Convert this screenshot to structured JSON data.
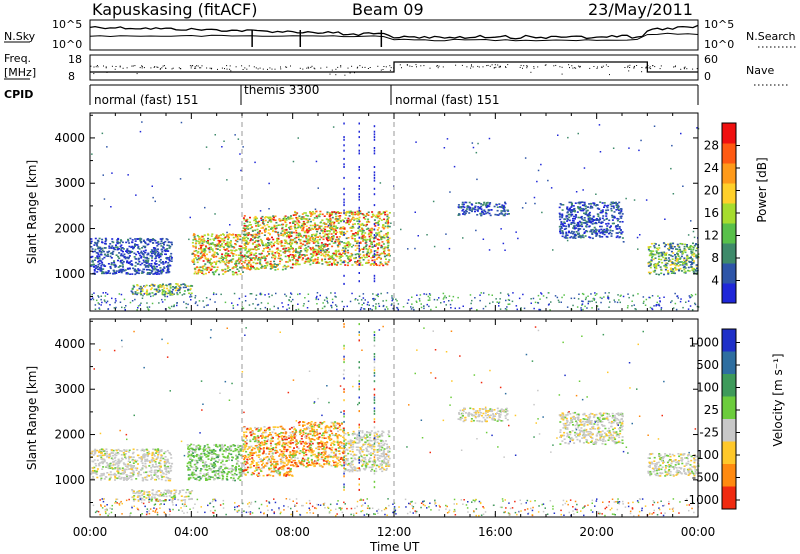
{
  "header": {
    "station": "Kapuskasing (fitACF)",
    "beam": "Beam 09",
    "date": "23/May/2011"
  },
  "strips": {
    "nsky_label": "N.Sky",
    "nsky_ticks": [
      "10^5",
      "10^0"
    ],
    "nsearch_label": "N.Search",
    "freq_label_1": "Freq.",
    "freq_label_2": "[MHz]",
    "freq_ticks": [
      "18",
      "8"
    ],
    "nave_ticks": [
      "60",
      "0"
    ],
    "nave_label": "Nave",
    "cpid_label": "CPID"
  },
  "cpid_segments": [
    {
      "label": "normal (fast) 151",
      "start_hour": 0,
      "end_hour": 6
    },
    {
      "label": "themis 3300",
      "start_hour": 6,
      "end_hour": 12
    },
    {
      "label": "normal (fast) 151",
      "start_hour": 12,
      "end_hour": 24
    }
  ],
  "x_axis": {
    "label": "Time UT",
    "ticks": [
      "00:00",
      "04:00",
      "08:00",
      "12:00",
      "16:00",
      "20:00",
      "00:00"
    ]
  },
  "chart_data": [
    {
      "type": "heatmap",
      "ylabel": "Slant Range [km]",
      "yticks": [
        1000,
        2000,
        3000,
        4000
      ],
      "ylim": [
        180,
        4550
      ],
      "xlim_hours": [
        0,
        24
      ],
      "colorbar_label": "Power [dB]",
      "colorbar_ticks": [
        4,
        8,
        12,
        16,
        20,
        24,
        28
      ],
      "colorbar_colors": [
        "#1f27d8",
        "#2e55a8",
        "#3e8a6a",
        "#58c04a",
        "#a6dc2e",
        "#ffd02a",
        "#ff9a1a",
        "#ff5a12",
        "#f01010"
      ],
      "echo_regions": [
        {
          "x0": 0.0,
          "x1": 3.2,
          "y0": 1000,
          "y1": 1800,
          "level": "low"
        },
        {
          "x0": 1.6,
          "x1": 4.0,
          "y0": 550,
          "y1": 800,
          "level": "medium"
        },
        {
          "x0": 4.0,
          "x1": 6.0,
          "y0": 1000,
          "y1": 1900,
          "level": "high"
        },
        {
          "x0": 6.0,
          "x1": 8.0,
          "y0": 1100,
          "y1": 2300,
          "level": "high"
        },
        {
          "x0": 8.0,
          "x1": 11.8,
          "y0": 1200,
          "y1": 2400,
          "level": "high"
        },
        {
          "x0": 14.5,
          "x1": 16.5,
          "y0": 2300,
          "y1": 2600,
          "level": "low"
        },
        {
          "x0": 18.5,
          "x1": 21.0,
          "y0": 1800,
          "y1": 2600,
          "level": "low"
        },
        {
          "x0": 22.0,
          "x1": 24.0,
          "y0": 1000,
          "y1": 1700,
          "level": "medium"
        }
      ]
    },
    {
      "type": "heatmap",
      "ylabel": "Slant Range [km]",
      "yticks": [
        1000,
        2000,
        3000,
        4000
      ],
      "ylim": [
        180,
        4550
      ],
      "xlim_hours": [
        0,
        24
      ],
      "colorbar_label": "Velocity [m s⁻¹]",
      "colorbar_ticks": [
        1000,
        500,
        100,
        25,
        -25,
        -100,
        -500,
        -1000
      ],
      "colorbar_colors": [
        "#1f30c8",
        "#2e6ea0",
        "#3e9a5a",
        "#6ccc3c",
        "#c8c8c8",
        "#ffc82a",
        "#ff8a10",
        "#f02a10"
      ],
      "echo_regions": [
        {
          "x0": 0.0,
          "x1": 3.2,
          "y0": 1000,
          "y1": 1700,
          "level": "gray"
        },
        {
          "x0": 1.6,
          "x1": 4.0,
          "y0": 550,
          "y1": 800,
          "level": "gray"
        },
        {
          "x0": 3.8,
          "x1": 6.0,
          "y0": 1000,
          "y1": 1800,
          "level": "green"
        },
        {
          "x0": 6.0,
          "x1": 8.0,
          "y0": 1100,
          "y1": 2200,
          "level": "orange"
        },
        {
          "x0": 8.0,
          "x1": 10.0,
          "y0": 1300,
          "y1": 2300,
          "level": "orange"
        },
        {
          "x0": 10.0,
          "x1": 11.8,
          "y0": 1200,
          "y1": 2100,
          "level": "gray"
        },
        {
          "x0": 14.5,
          "x1": 16.5,
          "y0": 2300,
          "y1": 2600,
          "level": "gray"
        },
        {
          "x0": 18.5,
          "x1": 21.0,
          "y0": 1800,
          "y1": 2500,
          "level": "gray"
        },
        {
          "x0": 22.0,
          "x1": 24.0,
          "y0": 1100,
          "y1": 1600,
          "level": "gray"
        }
      ]
    }
  ]
}
